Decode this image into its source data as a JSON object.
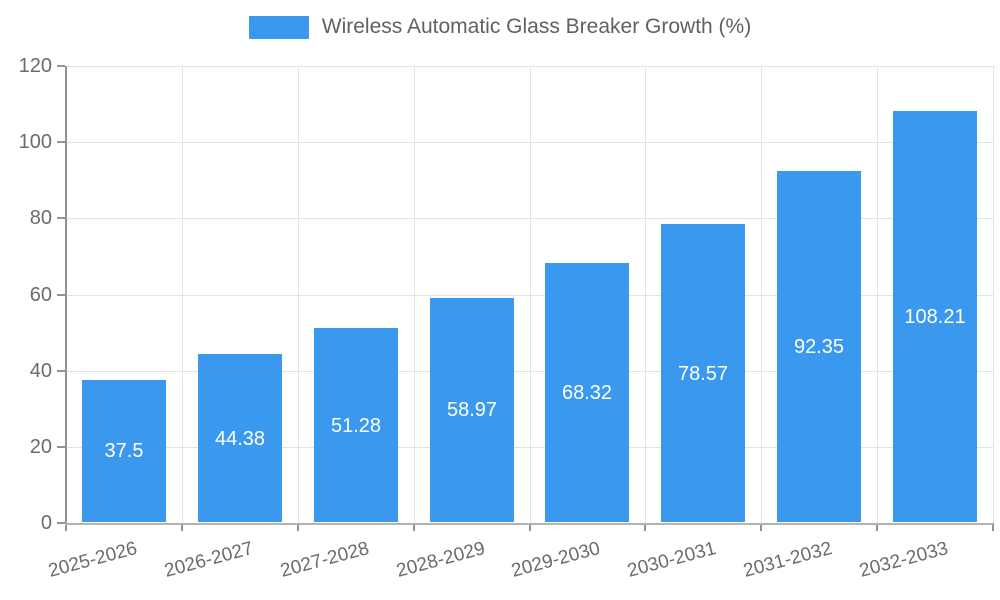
{
  "legend": {
    "label": "Wireless Automatic Glass Breaker Growth (%)"
  },
  "chart_data": {
    "type": "bar",
    "title": "Wireless Automatic Glass Breaker Growth (%)",
    "categories": [
      "2025-2026",
      "2026-2027",
      "2027-2028",
      "2028-2029",
      "2029-2030",
      "2030-2031",
      "2031-2032",
      "2032-2033"
    ],
    "values": [
      37.5,
      44.38,
      51.28,
      58.97,
      68.32,
      78.57,
      92.35,
      108.21
    ],
    "value_labels": [
      "37.5",
      "44.38",
      "51.28",
      "58.97",
      "68.32",
      "78.57",
      "92.35",
      "108.21"
    ],
    "xlabel": "",
    "ylabel": "",
    "ylim": [
      0,
      120
    ],
    "yticks": [
      0,
      20,
      40,
      60,
      80,
      100,
      120
    ],
    "grid": true,
    "legend_position": "top",
    "value_label_position": "inside-center"
  },
  "colors": {
    "bar": "#3a99ee",
    "grid": "#e3e3e3",
    "axis_y": "#939393",
    "axis_x": "#b3b3b3",
    "tick_label": "#6b6b6b",
    "legend_text": "#616161",
    "value_label": "#ffffff",
    "background": "#ffffff"
  }
}
